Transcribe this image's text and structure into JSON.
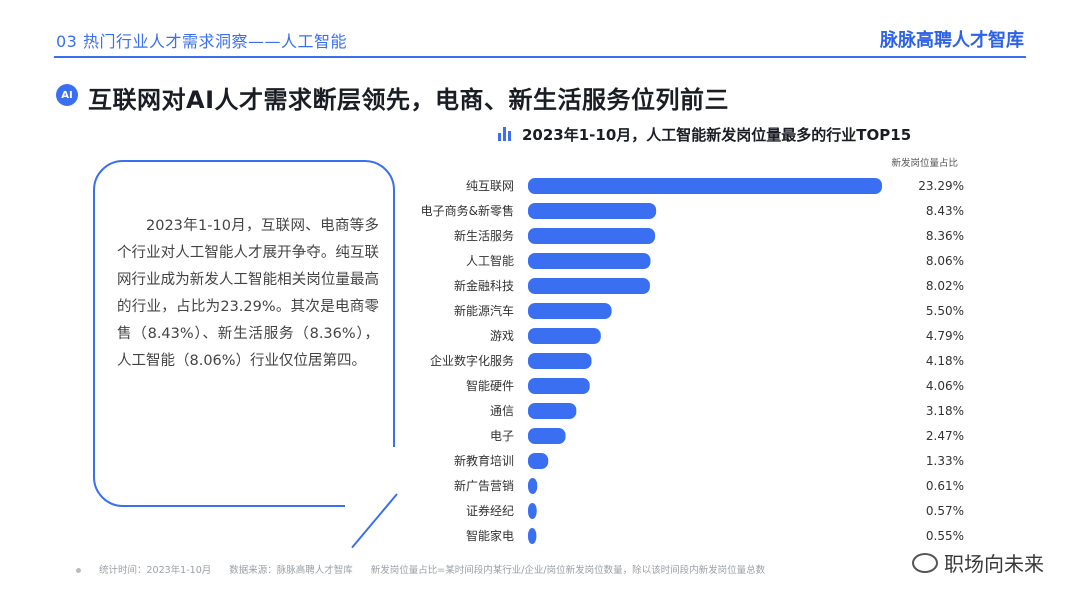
{
  "header": {
    "section_title": "03 热门行业人才需求洞察——人工智能",
    "brand": "脉脉高聘人才智库"
  },
  "headline": {
    "badge": "AI",
    "text": "互联网对AI人才需求断层领先，电商、新生活服务位列前三"
  },
  "summary": {
    "text": "2023年1-10月，互联网、电商等多个行业对人工智能人才展开争夺。纯互联网行业成为新发人工智能相关岗位量最高的行业，占比为23.29%。其次是电商零售（8.43%）、新生活服务（8.36%），人工智能（8.06%）行业仅位居第四。"
  },
  "chart_data": {
    "type": "bar",
    "orientation": "horizontal",
    "title": "2023年1-10月，人工智能新发岗位量最多的行业TOP15",
    "value_header": "新发岗位量占比",
    "categories": [
      "纯互联网",
      "电子商务&新零售",
      "新生活服务",
      "人工智能",
      "新金融科技",
      "新能源汽车",
      "游戏",
      "企业数字化服务",
      "智能硬件",
      "通信",
      "电子",
      "新教育培训",
      "新广告营销",
      "证券经纪",
      "智能家电"
    ],
    "values": [
      23.29,
      8.43,
      8.36,
      8.06,
      8.02,
      5.5,
      4.79,
      4.18,
      4.06,
      3.18,
      2.47,
      1.33,
      0.61,
      0.57,
      0.55
    ],
    "labels": [
      "23.29%",
      "8.43%",
      "8.36%",
      "8.06%",
      "8.02%",
      "5.50%",
      "4.79%",
      "4.18%",
      "4.06%",
      "3.18%",
      "2.47%",
      "1.33%",
      "0.61%",
      "0.57%",
      "0.55%"
    ],
    "unit": "%",
    "bar_color": "#3b6ff2"
  },
  "footer": {
    "stat_time": "统计时间：2023年1-10月",
    "source": "数据来源：脉脉高聘人才智库",
    "definition": "新发岗位量占比=某时间段内某行业/企业/岗位新发岗位数量，除以该时间段内新发岗位量总数"
  },
  "watermark": "职场向未来"
}
